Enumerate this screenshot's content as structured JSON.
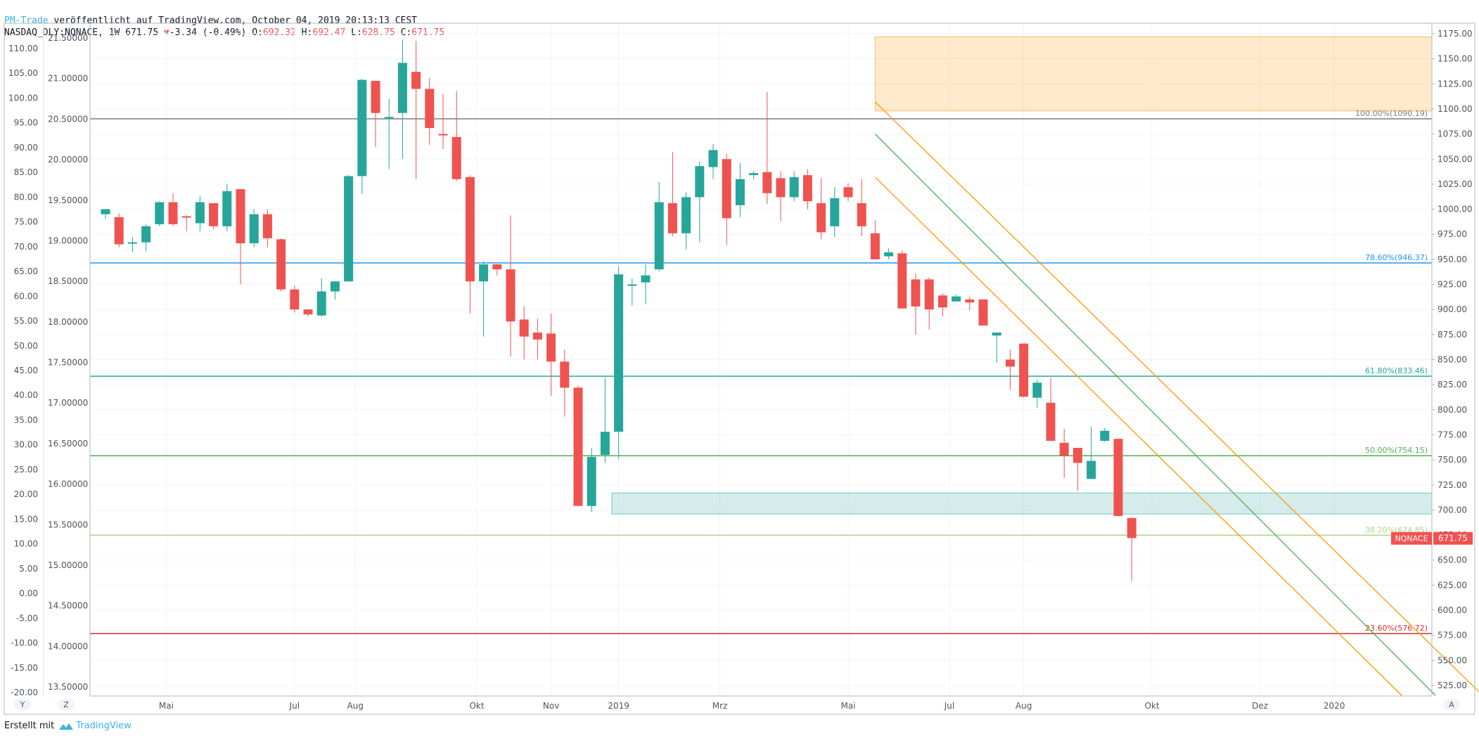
{
  "header": {
    "brand": "PM-Trade",
    "published": " veröffentlicht auf TradingView.com, October 04, 2019 20:13:13 CEST",
    "symbol_line": "NASDAQ_DLY:NQNACE, 1W 671.75",
    "change": "-3.34 (-0.49%)",
    "o_label": " O:",
    "o_value": "692.32",
    "h_label": " H:",
    "h_value": "692.47",
    "l_label": " L:",
    "l_value": "628.75",
    "c_label": " C:",
    "c_value": "671.75"
  },
  "footer": {
    "created_by": "Erstellt mit",
    "logo_text": "TradingView"
  },
  "buttons": {
    "y": "Y",
    "z": "Z",
    "a": "A"
  },
  "colors": {
    "up": "#26a69a",
    "down": "#ef5350",
    "orange": "#ff9800",
    "green": "#4caf50",
    "blue": "#2196f3",
    "teal": "#26a69a",
    "lime": "#aed581",
    "red_level": "#d32f2f",
    "grid": "#f0f3fa"
  },
  "chart_data": {
    "type": "candlestick",
    "timeframe": "1W",
    "symbol": "NQNACE",
    "last_price_label": "NQNACE",
    "last_price": "671.75",
    "x_ticks": [
      "Mai",
      "Jul",
      "Aug",
      "Okt",
      "Nov",
      "2019",
      "Mrz",
      "Mai",
      "Jul",
      "Aug",
      "Okt",
      "Dez",
      "2020"
    ],
    "right_axis_ticks": [
      "1175.00",
      "1150.00",
      "1125.00",
      "1100.00",
      "1075.00",
      "1050.00",
      "1025.00",
      "1000.00",
      "975.00",
      "950.00",
      "925.00",
      "900.00",
      "875.00",
      "850.00",
      "825.00",
      "800.00",
      "775.00",
      "750.00",
      "725.00",
      "700.00",
      "675.00",
      "650.00",
      "625.00",
      "600.00",
      "575.00",
      "550.00",
      "525.00"
    ],
    "left_axis_ticks": [
      "110.00",
      "105.00",
      "100.00",
      "95.00",
      "90.00",
      "85.00",
      "80.00",
      "75.00",
      "70.00",
      "65.00",
      "60.00",
      "55.00",
      "50.00",
      "45.00",
      "40.00",
      "35.00",
      "30.00",
      "25.00",
      "20.00",
      "15.00",
      "10.00",
      "5.00",
      "0.00",
      "-5.00",
      "-10.00",
      "-15.00",
      "-20.00"
    ],
    "left2_axis_ticks": [
      "21.50000",
      "21.00000",
      "20.50000",
      "20.00000",
      "19.50000",
      "19.00000",
      "18.50000",
      "18.00000",
      "17.50000",
      "17.00000",
      "16.50000",
      "16.00000",
      "15.50000",
      "15.00000",
      "14.50000",
      "14.00000",
      "13.50000"
    ],
    "y_range": [
      515,
      1178
    ],
    "fib_levels": [
      {
        "label": "100.00%(1090.19)",
        "value": 1090.19,
        "color": "#787b86"
      },
      {
        "label": "78.60%(946.37)",
        "value": 946.37,
        "color": "#2196f3"
      },
      {
        "label": "61.80%(833.46)",
        "value": 833.46,
        "color": "#26a69a"
      },
      {
        "label": "50.00%(754.15)",
        "value": 754.15,
        "color": "#4caf50"
      },
      {
        "label": "38.20%(674.85)",
        "value": 674.85,
        "color": "#aed581"
      },
      {
        "label": "23.60%(576.72)",
        "value": 576.72,
        "color": "#d32f2f"
      }
    ],
    "zones": [
      {
        "name": "resistance",
        "x_start": 57,
        "x_end": 106,
        "y_low": 1098,
        "y_high": 1172,
        "color": "#ff9800"
      },
      {
        "name": "support",
        "x_start": 37.5,
        "x_end": 106,
        "y_low": 696,
        "y_high": 717,
        "color": "#26a69a"
      }
    ],
    "channel": [
      {
        "color": "#ff9800",
        "x1": 57,
        "y1": 1107,
        "x2": 102,
        "y2": 515
      },
      {
        "color": "#4caf50",
        "x1": 57,
        "y1": 1075,
        "x2": 98.5,
        "y2": 515
      },
      {
        "color": "#ff9800",
        "x1": 57,
        "y1": 1032,
        "x2": 96,
        "y2": 515
      }
    ],
    "candles": [
      [
        995,
        1000,
        993,
        990
      ],
      [
        992,
        965,
        996,
        962
      ],
      [
        966,
        967,
        972,
        957
      ],
      [
        967,
        983,
        985,
        958
      ],
      [
        985,
        1007,
        1008,
        983
      ],
      [
        1007,
        985,
        1016,
        983
      ],
      [
        993,
        992,
        994,
        978
      ],
      [
        986,
        1007,
        1013,
        978
      ],
      [
        1006,
        983,
        1005,
        980
      ],
      [
        983,
        1018,
        1025,
        978
      ],
      [
        1020,
        966,
        1016,
        925
      ],
      [
        966,
        995,
        1000,
        962
      ],
      [
        995,
        971,
        1000,
        962
      ],
      [
        970,
        920,
        971,
        918
      ],
      [
        920,
        900,
        924,
        897
      ],
      [
        900,
        895,
        898,
        893
      ],
      [
        894,
        918,
        931,
        893
      ],
      [
        918,
        928,
        927,
        910
      ],
      [
        928,
        1033,
        1034,
        929
      ],
      [
        1033,
        1129,
        1130,
        1015
      ],
      [
        1128,
        1096,
        1100,
        1062
      ],
      [
        1092,
        1092,
        1110,
        1040
      ],
      [
        1096,
        1146,
        1169,
        1050
      ],
      [
        1137,
        1120,
        1168,
        1030
      ],
      [
        1120,
        1081,
        1131,
        1064
      ],
      [
        1075,
        1074,
        1115,
        1060
      ],
      [
        1072,
        1030,
        1118,
        1028
      ],
      [
        1032,
        928,
        1034,
        896
      ],
      [
        928,
        945,
        948,
        873
      ],
      [
        945,
        940,
        945,
        934
      ],
      [
        940,
        888,
        994,
        853
      ],
      [
        890,
        873,
        903,
        850
      ],
      [
        877,
        870,
        891,
        850
      ],
      [
        876,
        848,
        896,
        814
      ],
      [
        848,
        822,
        860,
        793
      ],
      [
        822,
        704,
        824,
        778
      ],
      [
        704,
        753,
        762,
        698
      ],
      [
        755,
        778,
        832,
        747
      ],
      [
        778,
        935,
        943,
        751
      ],
      [
        925,
        925,
        931,
        904
      ],
      [
        927,
        934,
        945,
        905
      ],
      [
        940,
        1007,
        1027,
        938
      ],
      [
        1006,
        976,
        1057,
        973
      ],
      [
        976,
        1012,
        1017,
        960
      ],
      [
        1012,
        1043,
        1048,
        967
      ],
      [
        1042,
        1059,
        1065,
        1030
      ],
      [
        1050,
        991,
        1055,
        964
      ],
      [
        1004,
        1030,
        1046,
        992
      ],
      [
        1034,
        1036,
        1038,
        1030
      ],
      [
        1037,
        1016,
        1117,
        1005
      ],
      [
        1031,
        1012,
        1038,
        988
      ],
      [
        1012,
        1032,
        1038,
        1008
      ],
      [
        1034,
        1008,
        1040,
        1000
      ],
      [
        1006,
        977,
        1031,
        970
      ],
      [
        983,
        1011,
        1022,
        972
      ],
      [
        1022,
        1012,
        1026,
        1008
      ],
      [
        1006,
        983,
        1030,
        973
      ],
      [
        976,
        950,
        989,
        952
      ],
      [
        953,
        957,
        961,
        950
      ],
      [
        956,
        901,
        959,
        960
      ],
      [
        930,
        903,
        936,
        875
      ],
      [
        930,
        900,
        932,
        880
      ],
      [
        914,
        902,
        916,
        893
      ],
      [
        908,
        913,
        915,
        908
      ],
      [
        910,
        907,
        913,
        899
      ],
      [
        910,
        884,
        908,
        906
      ],
      [
        874,
        877,
        876,
        847
      ],
      [
        850,
        843,
        860,
        820
      ],
      [
        866,
        813,
        819,
        812
      ],
      [
        812,
        827,
        830,
        802
      ],
      [
        807,
        769,
        832,
        770
      ],
      [
        767,
        754,
        781,
        732
      ],
      [
        762,
        747,
        750,
        719
      ],
      [
        731,
        749,
        783,
        749
      ],
      [
        769,
        779,
        782,
        768
      ],
      [
        771,
        694,
        770,
        745
      ],
      [
        692,
        672,
        692,
        629
      ]
    ],
    "candle_x_start": 0,
    "x_tick_positions": [
      5,
      14.5,
      19,
      28,
      33.5,
      38.5,
      46,
      55.5,
      63,
      68.5,
      78,
      86,
      91.5
    ]
  }
}
